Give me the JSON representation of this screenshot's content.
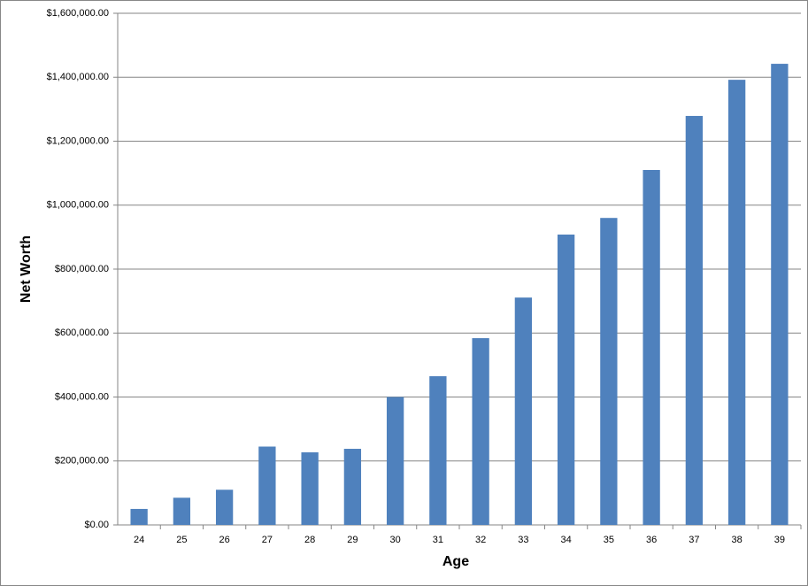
{
  "chart_data": {
    "type": "bar",
    "x_label": "Age",
    "y_label": "Net Worth",
    "categories": [
      "24",
      "25",
      "26",
      "27",
      "28",
      "29",
      "30",
      "31",
      "32",
      "33",
      "34",
      "35",
      "36",
      "37",
      "38",
      "39"
    ],
    "values": [
      50000,
      85000,
      110000,
      245000,
      227000,
      238000,
      400000,
      465000,
      584000,
      711000,
      908000,
      960000,
      1110000,
      1279000,
      1392000,
      1442000
    ],
    "color": "#4f81bd",
    "ylim": [
      0,
      1600000
    ],
    "yticks": [
      {
        "value": 0,
        "label": "$0.00"
      },
      {
        "value": 200000,
        "label": "$200,000.00"
      },
      {
        "value": 400000,
        "label": "$400,000.00"
      },
      {
        "value": 600000,
        "label": "$600,000.00"
      },
      {
        "value": 800000,
        "label": "$800,000.00"
      },
      {
        "value": 1000000,
        "label": "$1,000,000.00"
      },
      {
        "value": 1200000,
        "label": "$1,200,000.00"
      },
      {
        "value": 1400000,
        "label": "$1,400,000.00"
      },
      {
        "value": 1600000,
        "label": "$1,600,000.00"
      }
    ],
    "grid": true
  }
}
